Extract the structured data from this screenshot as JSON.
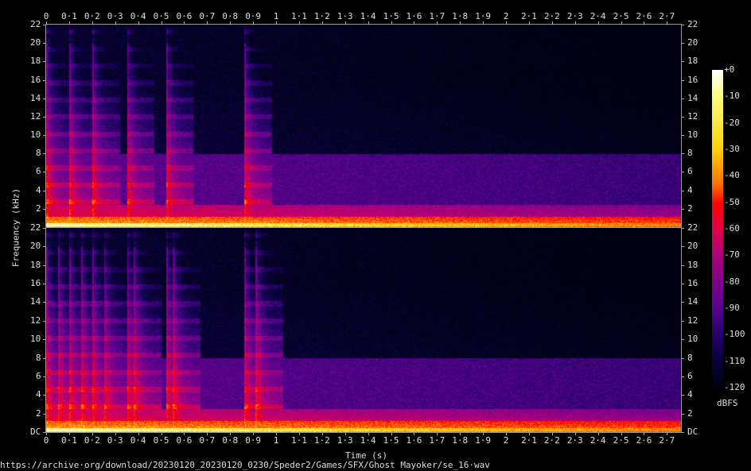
{
  "chart_data": {
    "type": "heatmap",
    "subtype": "spectrogram",
    "channels": 2,
    "xlabel": "Time (s)",
    "ylabel": "Frequency (kHz)",
    "xlim": [
      0,
      2.76
    ],
    "ylim": [
      0,
      22
    ],
    "x_ticks": [
      "0",
      "0·1",
      "0·2",
      "0·3",
      "0·4",
      "0·5",
      "0·6",
      "0·7",
      "0·8",
      "0·9",
      "1",
      "1·1",
      "1·2",
      "1·3",
      "1·4",
      "1·5",
      "1·6",
      "1·7",
      "1·8",
      "1·9",
      "2",
      "2·1",
      "2·2",
      "2·3",
      "2·4",
      "2·5",
      "2·6",
      "2·7"
    ],
    "y_ticks_top": [
      "2",
      "4",
      "6",
      "8",
      "10",
      "12",
      "14",
      "16",
      "18",
      "20",
      "22"
    ],
    "y_ticks_bottom": [
      "DC",
      "2",
      "4",
      "6",
      "8",
      "10",
      "12",
      "14",
      "16",
      "18",
      "20",
      "22"
    ],
    "y_tick_values": [
      0,
      2,
      4,
      6,
      8,
      10,
      12,
      14,
      16,
      18,
      20,
      22
    ],
    "colorbar": {
      "label": "dBFS",
      "range": [
        -120,
        0
      ],
      "ticks": [
        "+0",
        "-10",
        "-20",
        "-30",
        "-40",
        "-50",
        "-60",
        "-70",
        "-80",
        "-90",
        "-100",
        "-110",
        "-120"
      ],
      "colors": [
        "#ffffff",
        "#ffff80",
        "#ffd000",
        "#ff7000",
        "#ff0000",
        "#e0004a",
        "#b0007a",
        "#80008a",
        "#5a0090",
        "#25006a",
        "#0a0040",
        "#000010"
      ]
    },
    "onsets_s": {
      "top": [
        0.0,
        0.1,
        0.2,
        0.35,
        0.52,
        0.86
      ],
      "bottom": [
        0.0,
        0.05,
        0.1,
        0.15,
        0.2,
        0.25,
        0.35,
        0.38,
        0.52,
        0.55,
        0.86,
        0.91
      ]
    },
    "grid": false
  },
  "footer": {
    "source": "https://archive·org/download/20230120_20230120_0230/Speder2/Games/SFX/Ghost Mayoker/se_16·wav"
  }
}
